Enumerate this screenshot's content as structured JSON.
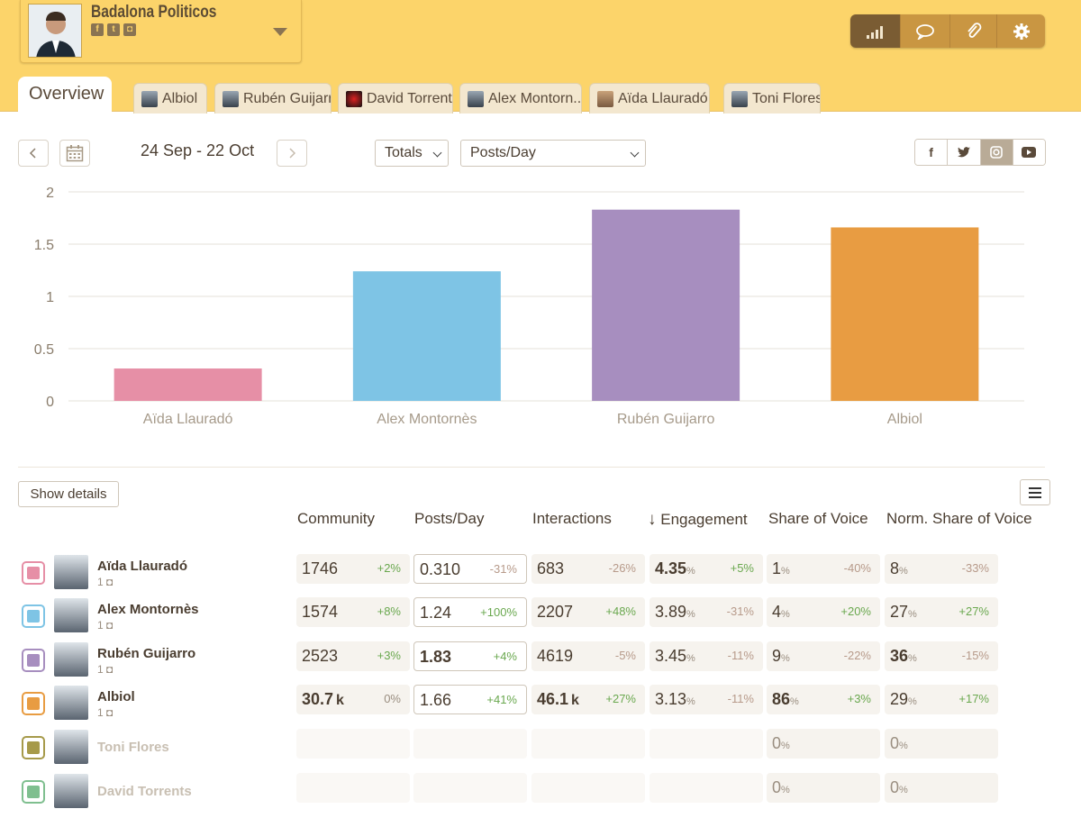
{
  "header": {
    "account_name": "Badalona Politicos",
    "social_icons": [
      "facebook-icon",
      "twitter-icon",
      "instagram-icon"
    ]
  },
  "toolbar": {
    "buttons": [
      "signal-icon",
      "comment-icon",
      "paperclip-icon",
      "gear-icon"
    ],
    "active": 0
  },
  "tabs": {
    "overview": "Overview",
    "items": [
      "Albiol",
      "Rubén Guijarro",
      "David Torrents",
      "Alex Montorn...",
      "Aïda Llauradó",
      "Toni Flores"
    ]
  },
  "controls": {
    "date_range": "24 Sep - 22 Oct",
    "select_totals": "Totals",
    "select_metric": "Posts/Day",
    "networks": [
      "f",
      "t",
      "ig",
      "yt"
    ],
    "active_network": "ig"
  },
  "chart_data": {
    "type": "bar",
    "categories": [
      "Aïda Llauradó",
      "Alex Montornès",
      "Rubén Guijarro",
      "Albiol"
    ],
    "values": [
      0.31,
      1.24,
      1.83,
      1.66
    ],
    "colors": [
      "#e68fa6",
      "#7ec4e5",
      "#a78ebf",
      "#e89c42"
    ],
    "ylim": [
      0,
      2
    ],
    "yticks": [
      "0",
      "0.5",
      "1",
      "1.5",
      "2"
    ],
    "grid": true
  },
  "table": {
    "show_details_label": "Show details",
    "headers": [
      "Community",
      "Posts/Day",
      "Interactions",
      "Engagement",
      "Share of Voice",
      "Norm. Share of Voice"
    ],
    "sort_arrow": "↓",
    "rows": [
      {
        "name": "Aïda Llauradó",
        "sub": "1",
        "color": "#e68fa6",
        "active": true,
        "community": {
          "v": "1746",
          "d": "+2%"
        },
        "posts": {
          "v": "0.310",
          "d": "-31%"
        },
        "interactions": {
          "v": "683",
          "d": "-26%"
        },
        "engagement": {
          "v": "4.35",
          "u": "%",
          "d": "+5%",
          "bold": true
        },
        "sov": {
          "v": "1",
          "u": "%",
          "d": "-40%"
        },
        "nsov": {
          "v": "8",
          "u": "%",
          "d": "-33%"
        }
      },
      {
        "name": "Alex Montornès",
        "sub": "1",
        "color": "#7ec4e5",
        "active": true,
        "community": {
          "v": "1574",
          "d": "+8%"
        },
        "posts": {
          "v": "1.24",
          "d": "+100%"
        },
        "interactions": {
          "v": "2207",
          "d": "+48%"
        },
        "engagement": {
          "v": "3.89",
          "u": "%",
          "d": "-31%"
        },
        "sov": {
          "v": "4",
          "u": "%",
          "d": "+20%"
        },
        "nsov": {
          "v": "27",
          "u": "%",
          "d": "+27%"
        }
      },
      {
        "name": "Rubén Guijarro",
        "sub": "1",
        "color": "#a78ebf",
        "active": true,
        "community": {
          "v": "2523",
          "d": "+3%"
        },
        "posts": {
          "v": "1.83",
          "d": "+4%",
          "bold": true
        },
        "interactions": {
          "v": "4619",
          "d": "-5%"
        },
        "engagement": {
          "v": "3.45",
          "u": "%",
          "d": "-11%"
        },
        "sov": {
          "v": "9",
          "u": "%",
          "d": "-22%"
        },
        "nsov": {
          "v": "36",
          "u": "%",
          "d": "-15%",
          "bold": true
        }
      },
      {
        "name": "Albiol",
        "sub": "1",
        "color": "#e89c42",
        "active": true,
        "community": {
          "v": "30.7",
          "u": "k",
          "d": "0%",
          "bold": true
        },
        "posts": {
          "v": "1.66",
          "d": "+41%"
        },
        "interactions": {
          "v": "46.1",
          "u": "k",
          "d": "+27%",
          "bold": true
        },
        "engagement": {
          "v": "3.13",
          "u": "%",
          "d": "-11%"
        },
        "sov": {
          "v": "86",
          "u": "%",
          "d": "+3%",
          "bold": true
        },
        "nsov": {
          "v": "29",
          "u": "%",
          "d": "+17%"
        }
      },
      {
        "name": "Toni Flores",
        "color": "#a69a4a",
        "active": false,
        "sov": {
          "v": "0",
          "u": "%"
        },
        "nsov": {
          "v": "0",
          "u": "%"
        }
      },
      {
        "name": "David Torrents",
        "color": "#7fbf8f",
        "active": false,
        "sov": {
          "v": "0",
          "u": "%"
        },
        "nsov": {
          "v": "0",
          "u": "%"
        }
      }
    ]
  }
}
